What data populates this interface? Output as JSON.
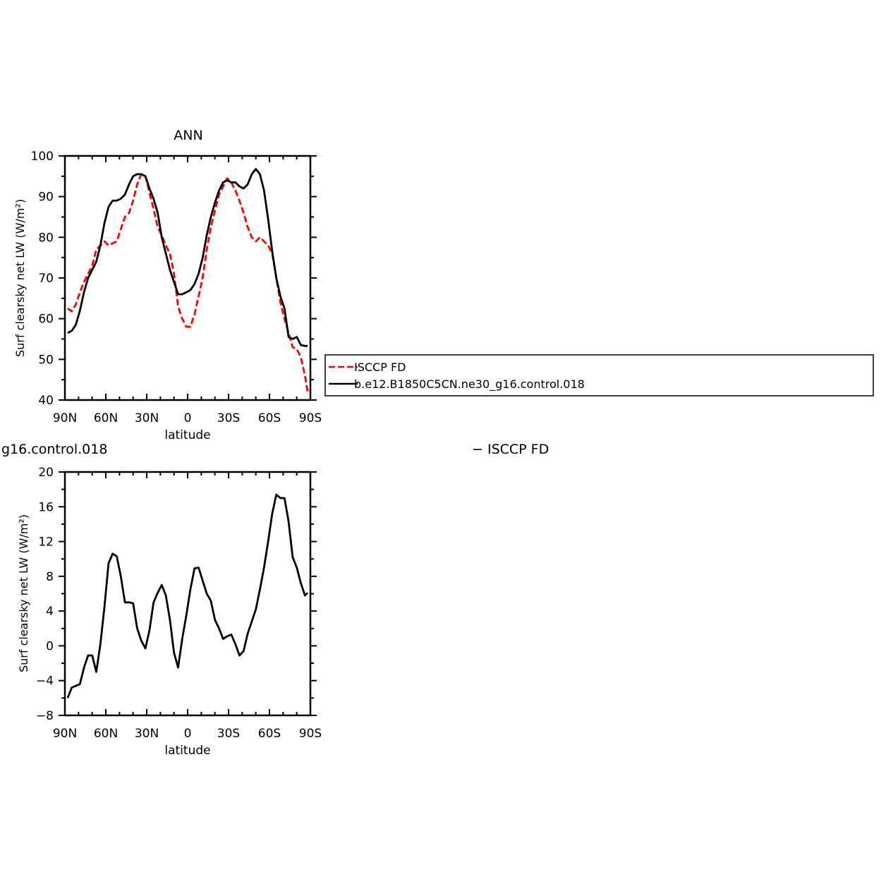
{
  "chart_data": [
    {
      "type": "line",
      "title": "ANN",
      "xlabel": "latitude",
      "ylabel": "Surf clearsky net LW (W/m²)",
      "xlim": [
        90,
        -90
      ],
      "ylim": [
        40,
        100
      ],
      "x_ticks": [
        90,
        60,
        30,
        0,
        -30,
        -60,
        -90
      ],
      "x_tick_labels": [
        "90N",
        "60N",
        "30N",
        "0",
        "30S",
        "60S",
        "90S"
      ],
      "y_ticks": [
        40,
        50,
        60,
        70,
        80,
        90,
        100
      ],
      "y_tick_labels": [
        "40",
        "50",
        "60",
        "70",
        "80",
        "90",
        "100"
      ],
      "legend_position": "right",
      "series": [
        {
          "name": "ISCCP FD",
          "color": "#ff0000",
          "dash": "dashed",
          "x": [
            88,
            85,
            82,
            79,
            76,
            73,
            70,
            67,
            64,
            61,
            58,
            55,
            52,
            49,
            46,
            43,
            40,
            37,
            34,
            31,
            28,
            25,
            22,
            19,
            16,
            13,
            10,
            7,
            4,
            1,
            -2,
            -5,
            -8,
            -11,
            -14,
            -17,
            -20,
            -23,
            -26,
            -29,
            -32,
            -35,
            -38,
            -41,
            -44,
            -47,
            -50,
            -53,
            -56,
            -59,
            -62,
            -65,
            -68,
            -71,
            -74,
            -77,
            -80,
            -83,
            -86,
            -88
          ],
          "values": [
            62.5,
            61.8,
            63.5,
            66.5,
            69,
            71,
            73,
            77,
            78,
            79,
            78,
            78.5,
            79,
            82,
            85,
            86,
            89,
            93,
            95.5,
            95,
            91,
            87,
            82.5,
            80.5,
            78,
            76,
            71,
            63,
            60,
            58,
            58,
            61,
            65.5,
            70,
            77,
            82.5,
            86.5,
            90.5,
            92.5,
            94.5,
            93.5,
            91.5,
            89,
            86,
            82.5,
            80,
            79,
            80,
            79,
            78,
            76,
            70,
            64,
            60,
            56.5,
            53,
            52.5,
            50.5,
            46,
            42
          ]
        },
        {
          "name": "b.e12.B1850C5CN.ne30_g16.control.018",
          "color": "#000000",
          "dash": "solid",
          "x": [
            88,
            85,
            82,
            79,
            76,
            73,
            70,
            67,
            64,
            61,
            58,
            55,
            52,
            49,
            46,
            43,
            40,
            37,
            34,
            31,
            28,
            25,
            22,
            19,
            16,
            13,
            10,
            7,
            4,
            1,
            -2,
            -5,
            -8,
            -11,
            -14,
            -17,
            -20,
            -23,
            -26,
            -29,
            -32,
            -35,
            -38,
            -41,
            -44,
            -47,
            -50,
            -53,
            -56,
            -59,
            -62,
            -65,
            -68,
            -71,
            -74,
            -77,
            -80,
            -83,
            -86,
            -88
          ],
          "values": [
            56.5,
            57,
            58.5,
            62,
            66.5,
            70,
            72,
            74,
            78,
            83.5,
            87.5,
            89,
            89,
            89.5,
            90.5,
            93,
            95,
            95.5,
            95.5,
            95,
            92,
            89.5,
            86,
            80,
            76,
            72,
            69,
            66,
            66,
            66.5,
            67,
            68.5,
            71,
            75,
            80.5,
            85,
            88.5,
            91.5,
            93.5,
            94,
            93.5,
            93.5,
            92.5,
            92,
            93,
            95.5,
            96.8,
            95.5,
            91.5,
            84.5,
            76.5,
            70,
            65.5,
            62.5,
            55.5,
            55,
            55.5,
            53.5,
            53.3,
            53.3
          ]
        }
      ]
    },
    {
      "type": "line",
      "title": "g16.control.018",
      "xlabel": "latitude",
      "ylabel": "Surf clearsky net LW (W/m²)",
      "xlim": [
        90,
        -90
      ],
      "ylim": [
        -8,
        20
      ],
      "x_ticks": [
        90,
        60,
        30,
        0,
        -30,
        -60,
        -90
      ],
      "x_tick_labels": [
        "90N",
        "60N",
        "30N",
        "0",
        "30S",
        "60S",
        "90S"
      ],
      "y_ticks": [
        -8,
        -4,
        0,
        4,
        8,
        12,
        16,
        20
      ],
      "y_tick_labels": [
        "−8",
        "−4",
        "0",
        "4",
        "8",
        "12",
        "16",
        "20"
      ],
      "right_title": "− ISCCP FD",
      "series": [
        {
          "color": "#000000",
          "dash": "solid",
          "x": [
            88,
            85,
            82,
            79,
            76,
            73,
            70,
            67,
            64,
            61,
            58,
            55,
            52,
            49,
            46,
            43,
            40,
            37,
            34,
            31,
            28,
            25,
            22,
            19,
            16,
            13,
            10,
            7,
            4,
            1,
            -2,
            -5,
            -8,
            -11,
            -14,
            -17,
            -20,
            -23,
            -26,
            -29,
            -32,
            -35,
            -38,
            -41,
            -44,
            -47,
            -50,
            -53,
            -56,
            -59,
            -62,
            -65,
            -68,
            -71,
            -74,
            -77,
            -80,
            -83,
            -86,
            -88
          ],
          "values": [
            -6,
            -4.8,
            -4.6,
            -4.4,
            -2.5,
            -1.1,
            -1.1,
            -3,
            0.2,
            4.5,
            9.5,
            10.6,
            10.3,
            8,
            5,
            5,
            4.9,
            2,
            0.6,
            -0.3,
            1.8,
            5,
            6.1,
            7,
            5.8,
            3,
            -0.8,
            -2.5,
            0.8,
            3.5,
            6.5,
            8.9,
            9,
            7.5,
            6,
            5.2,
            3,
            2,
            0.8,
            1.1,
            1.3,
            0.2,
            -1.1,
            -0.6,
            1.4,
            2.8,
            4.2,
            6.5,
            9,
            12,
            15.2,
            17.4,
            17,
            17,
            14.3,
            10.2,
            9,
            7.2,
            5.8,
            6.1
          ]
        }
      ]
    }
  ]
}
